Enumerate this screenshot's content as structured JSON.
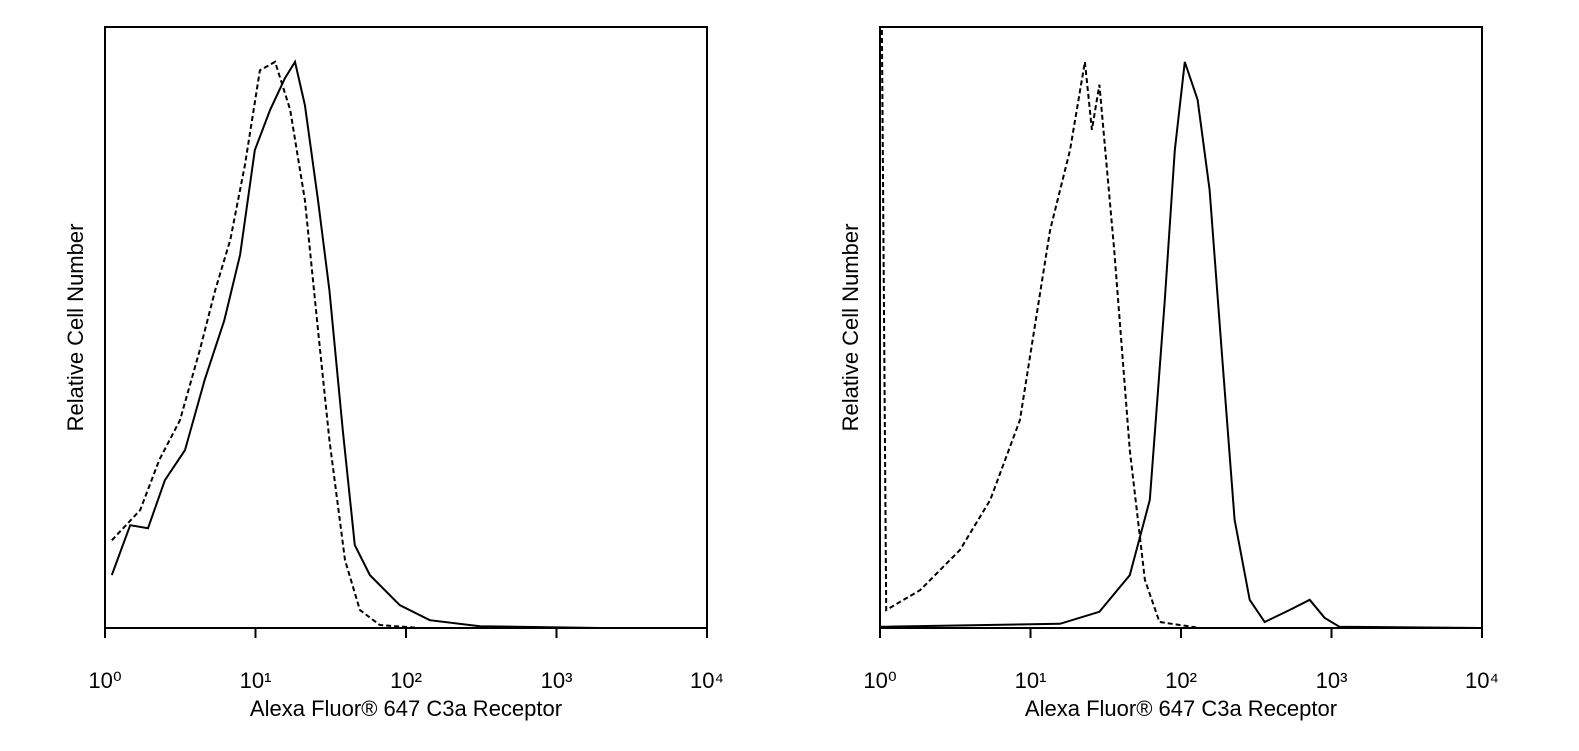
{
  "chart_data": [
    {
      "type": "line",
      "xlabel": "Alexa Fluor® 647 C3a Receptor",
      "ylabel": "Relative Cell Number",
      "xscale": "log",
      "xlim": [
        1,
        10000
      ],
      "ylim": [
        0,
        100
      ],
      "xticks": [
        {
          "value": 1,
          "label": "10⁰"
        },
        {
          "value": 10,
          "label": "10¹"
        },
        {
          "value": 100,
          "label": "10²"
        },
        {
          "value": 1000,
          "label": "10³"
        },
        {
          "value": 10000,
          "label": "10⁴"
        }
      ],
      "series": [
        {
          "color": "#000000",
          "dash": false,
          "x": [
            1.11,
            1.47,
            1.93,
            2.5,
            3.4,
            4.6,
            6.2,
            7.9,
            9.9,
            12.5,
            15.7,
            18.3,
            21.3,
            26,
            31,
            38,
            45.7,
            57.6,
            91,
            144,
            310,
            1950,
            10000
          ],
          "values": [
            8.8,
            17.1,
            16.6,
            24.6,
            29.6,
            41.3,
            51.2,
            62.1,
            79.5,
            86.2,
            91.5,
            94.2,
            87,
            71.2,
            56.2,
            32.9,
            13.8,
            8.8,
            3.8,
            1.3,
            0.3,
            0,
            0
          ]
        },
        {
          "color": "#000000",
          "dash": true,
          "x": [
            1.11,
            1.71,
            2.3,
            3.15,
            4.27,
            5.4,
            6.8,
            8.5,
            10.7,
            13.5,
            17,
            21.3,
            26,
            31,
            39.3,
            49.4,
            67,
            124,
            10000
          ],
          "values": [
            14.6,
            19.6,
            28,
            34.6,
            46.3,
            56.2,
            64.6,
            77,
            92.8,
            94.2,
            86.2,
            71.2,
            49.6,
            31.3,
            11.3,
            3,
            0.5,
            0,
            0
          ]
        }
      ]
    },
    {
      "type": "line",
      "xlabel": "Alexa Fluor® 647 C3a Receptor",
      "ylabel": "Relative Cell Number",
      "xscale": "log",
      "xlim": [
        1,
        10000
      ],
      "ylim": [
        0,
        100
      ],
      "xticks": [
        {
          "value": 1,
          "label": "10⁰"
        },
        {
          "value": 10,
          "label": "10¹"
        },
        {
          "value": 100,
          "label": "10²"
        },
        {
          "value": 1000,
          "label": "10³"
        },
        {
          "value": 10000,
          "label": "10⁴"
        }
      ],
      "series": [
        {
          "color": "#000000",
          "dash": false,
          "x": [
            1,
            15.7,
            28.7,
            45.7,
            62,
            78,
            91,
            106,
            129,
            155,
            186,
            227,
            286,
            360,
            527,
            716,
            900,
            1130,
            10000
          ],
          "values": [
            0.2,
            0.7,
            2.7,
            8.8,
            21.3,
            54.6,
            79.5,
            94.2,
            87.9,
            72.9,
            46.3,
            18,
            4.7,
            1,
            3,
            4.7,
            1.7,
            0.2,
            0
          ]
        },
        {
          "color": "#000000",
          "dash": true,
          "x": [
            1.03,
            1.1,
            1.85,
            3.4,
            5.4,
            8.5,
            13.5,
            18.3,
            23,
            25.6,
            28.7,
            36,
            45.7,
            57.6,
            72,
            134,
            10000
          ],
          "values": [
            99.5,
            3,
            6.3,
            13,
            21.3,
            34.6,
            66.2,
            79.5,
            94.2,
            82.9,
            90.4,
            62.9,
            29.6,
            8,
            1,
            0,
            0
          ]
        }
      ]
    }
  ]
}
